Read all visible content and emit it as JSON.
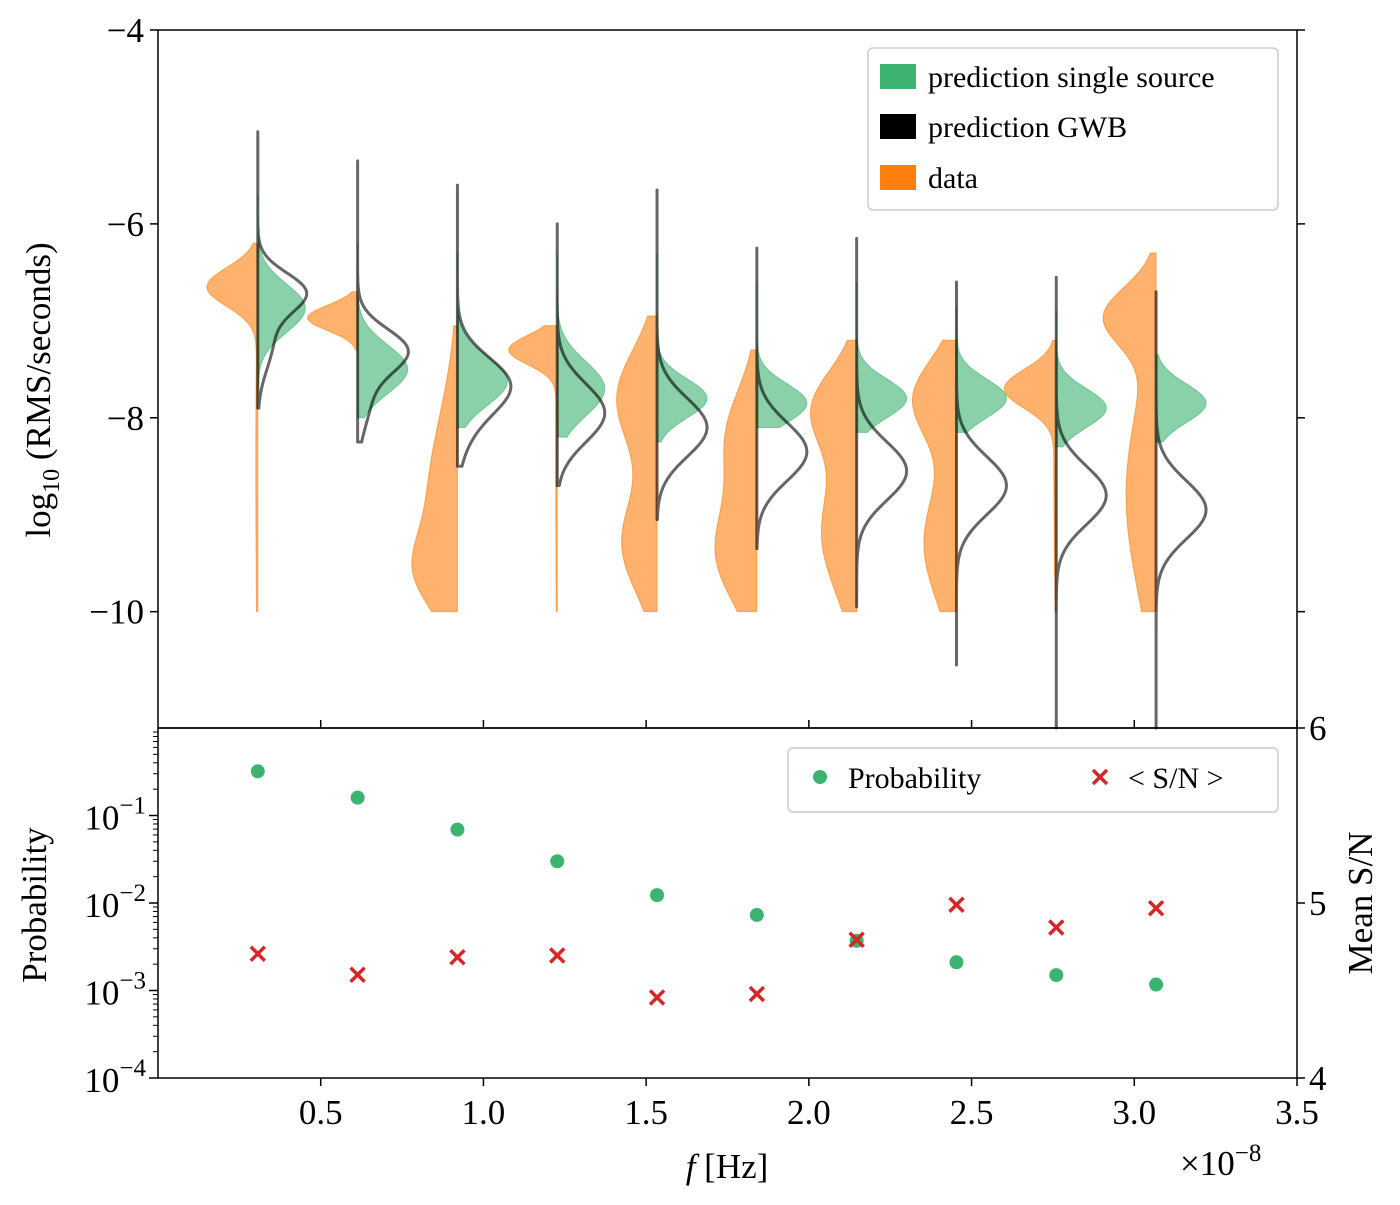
{
  "chart_data": [
    {
      "type": "violin",
      "panel": "top",
      "ylabel": {
        "base": "log",
        "sub": "10",
        "rest": " (RMS/seconds)"
      },
      "ylim": [
        -11.2,
        -4
      ],
      "xlim": [
        0,
        3.5
      ],
      "yticks": [
        -4,
        -6,
        -8,
        -10
      ],
      "ytick_labels": [
        "−4",
        "−6",
        "−8",
        "−10"
      ],
      "grid": false,
      "legend_placement": "upper right",
      "legend": [
        {
          "label": "prediction single source",
          "color": "#3cb371"
        },
        {
          "label": "prediction GWB",
          "color": "#000000"
        },
        {
          "label": "data",
          "color": "#ff7f0e"
        }
      ],
      "frequencies": [
        0.3067,
        0.6134,
        0.9201,
        1.2268,
        1.5335,
        1.8402,
        2.1469,
        2.4536,
        2.7603,
        3.067
      ],
      "violins": [
        {
          "data": {
            "range": [
              -10,
              -6.2
            ],
            "modes": [
              [
                -6.65,
                0.2,
                1.0
              ],
              [
                -8.5,
                1.5,
                0.04
              ]
            ]
          },
          "single_source": {
            "range": [
              -7.9,
              -5.7
            ],
            "modes": [
              [
                -6.87,
                0.25,
                0.95
              ]
            ]
          },
          "gwb": {
            "range": [
              -7.9,
              -5.05
            ],
            "modes": [
              [
                -6.7,
                0.2,
                0.9
              ],
              [
                -7.2,
                0.3,
                0.3
              ]
            ]
          }
        },
        {
          "data": {
            "range": [
              -7.3,
              -6.7
            ],
            "modes": [
              [
                -6.97,
                0.13,
                1.0
              ]
            ]
          },
          "single_source": {
            "range": [
              -8.0,
              -6.2
            ],
            "modes": [
              [
                -7.5,
                0.25,
                1.0
              ]
            ]
          },
          "gwb": {
            "range": [
              -8.25,
              -5.35
            ],
            "modes": [
              [
                -7.3,
                0.22,
                0.95
              ],
              [
                -7.8,
                0.3,
                0.25
              ]
            ]
          }
        },
        {
          "data": {
            "range": [
              -10,
              -7.05
            ],
            "modes": [
              [
                -9.6,
                0.35,
                0.45
              ],
              [
                -8.9,
                0.9,
                0.6
              ]
            ]
          },
          "single_source": {
            "range": [
              -8.1,
              -6.3
            ],
            "modes": [
              [
                -7.62,
                0.25,
                1.0
              ]
            ]
          },
          "gwb": {
            "range": [
              -8.5,
              -5.6
            ],
            "modes": [
              [
                -7.65,
                0.28,
                1.0
              ],
              [
                -8.1,
                0.3,
                0.2
              ]
            ]
          }
        },
        {
          "data": {
            "range": [
              -10,
              -7.05
            ],
            "modes": [
              [
                -7.3,
                0.15,
                0.95
              ],
              [
                -8.5,
                1.5,
                0.03
              ]
            ]
          },
          "single_source": {
            "range": [
              -8.2,
              -6.3
            ],
            "modes": [
              [
                -7.7,
                0.28,
                0.95
              ]
            ]
          },
          "gwb": {
            "range": [
              -8.7,
              -6.0
            ],
            "modes": [
              [
                -7.95,
                0.3,
                0.95
              ]
            ]
          }
        },
        {
          "data": {
            "range": [
              -10,
              -6.95
            ],
            "modes": [
              [
                -7.8,
                0.5,
                0.8
              ],
              [
                -9.3,
                0.5,
                0.7
              ]
            ]
          },
          "single_source": {
            "range": [
              -8.25,
              -6.3
            ],
            "modes": [
              [
                -7.8,
                0.2,
                1.0
              ]
            ]
          },
          "gwb": {
            "range": [
              -9.05,
              -5.65
            ],
            "modes": [
              [
                -8.1,
                0.3,
                1.0
              ]
            ]
          }
        },
        {
          "data": {
            "range": [
              -10,
              -7.3
            ],
            "modes": [
              [
                -8.2,
                0.5,
                0.6
              ],
              [
                -9.4,
                0.5,
                0.8
              ]
            ]
          },
          "single_source": {
            "range": [
              -8.1,
              -6.6
            ],
            "modes": [
              [
                -7.85,
                0.2,
                1.0
              ]
            ]
          },
          "gwb": {
            "range": [
              -9.35,
              -6.25
            ],
            "modes": [
              [
                -8.35,
                0.3,
                1.0
              ]
            ]
          }
        },
        {
          "data": {
            "range": [
              -10,
              -7.2
            ],
            "modes": [
              [
                -7.9,
                0.4,
                0.85
              ],
              [
                -9.2,
                0.6,
                0.7
              ]
            ]
          },
          "single_source": {
            "range": [
              -8.15,
              -6.6
            ],
            "modes": [
              [
                -7.8,
                0.2,
                1.0
              ]
            ]
          },
          "gwb": {
            "range": [
              -9.95,
              -6.15
            ],
            "modes": [
              [
                -8.55,
                0.3,
                1.0
              ]
            ]
          }
        },
        {
          "data": {
            "range": [
              -10,
              -7.2
            ],
            "modes": [
              [
                -7.8,
                0.4,
                0.85
              ],
              [
                -9.3,
                0.6,
                0.65
              ]
            ]
          },
          "single_source": {
            "range": [
              -8.15,
              -6.85
            ],
            "modes": [
              [
                -7.8,
                0.2,
                1.0
              ]
            ]
          },
          "gwb": {
            "range": [
              -10.55,
              -6.6
            ],
            "modes": [
              [
                -8.7,
                0.3,
                1.0
              ]
            ]
          }
        },
        {
          "data": {
            "range": [
              -10,
              -7.2
            ],
            "modes": [
              [
                -7.7,
                0.2,
                1.0
              ],
              [
                -8.5,
                1.2,
                0.05
              ]
            ]
          },
          "single_source": {
            "range": [
              -8.3,
              -6.9
            ],
            "modes": [
              [
                -7.9,
                0.2,
                1.0
              ]
            ]
          },
          "gwb": {
            "range": [
              -11.2,
              -6.55
            ],
            "modes": [
              [
                -8.8,
                0.3,
                1.0
              ]
            ]
          }
        },
        {
          "data": {
            "range": [
              -10,
              -6.3
            ],
            "modes": [
              [
                -6.95,
                0.3,
                0.95
              ],
              [
                -8.8,
                1.0,
                0.6
              ]
            ]
          },
          "single_source": {
            "range": [
              -8.25,
              -7.35
            ],
            "modes": [
              [
                -7.85,
                0.2,
                1.0
              ]
            ]
          },
          "gwb": {
            "range": [
              -11.2,
              -6.7
            ],
            "modes": [
              [
                -8.95,
                0.3,
                1.0
              ]
            ]
          }
        }
      ]
    },
    {
      "type": "scatter",
      "panel": "bottom",
      "xlabel": {
        "italic": "f",
        "rest": " [Hz]"
      },
      "x_multiplier": {
        "base": "×10",
        "exp": "−8"
      },
      "xlim": [
        0,
        3.5
      ],
      "xticks": [
        0.5,
        1.0,
        1.5,
        2.0,
        2.5,
        3.0,
        3.5
      ],
      "xtick_labels": [
        "0.5",
        "1.0",
        "1.5",
        "2.0",
        "2.5",
        "3.0",
        "3.5"
      ],
      "ylabel_left": "Probability",
      "ylim_left": [
        0.0001,
        1
      ],
      "yscale_left": "log",
      "yticks_left_exponents": [
        "−4",
        "−3",
        "−2",
        "−1"
      ],
      "ylabel_right": "Mean S/N",
      "ylim_right": [
        4,
        6
      ],
      "yticks_right": [
        "4",
        "5",
        "6"
      ],
      "legend_placement": "upper right",
      "legend": [
        {
          "label": "Probability",
          "color": "#3cb371",
          "marker": "circle"
        },
        {
          "label": "< S/N >",
          "color": "#d62728",
          "marker": "x"
        }
      ],
      "x": [
        0.3067,
        0.6134,
        0.9201,
        1.2268,
        1.5335,
        1.8402,
        2.1469,
        2.4536,
        2.7603,
        3.067
      ],
      "series": [
        {
          "name": "Probability",
          "axis": "left",
          "values": [
            0.32,
            0.16,
            0.069,
            0.03,
            0.0123,
            0.0073,
            0.0037,
            0.0021,
            0.0015,
            0.00117
          ]
        },
        {
          "name": "< S/N >",
          "axis": "right",
          "values": [
            4.71,
            4.59,
            4.69,
            4.7,
            4.46,
            4.48,
            4.79,
            4.99,
            4.86,
            4.97
          ]
        }
      ]
    }
  ]
}
